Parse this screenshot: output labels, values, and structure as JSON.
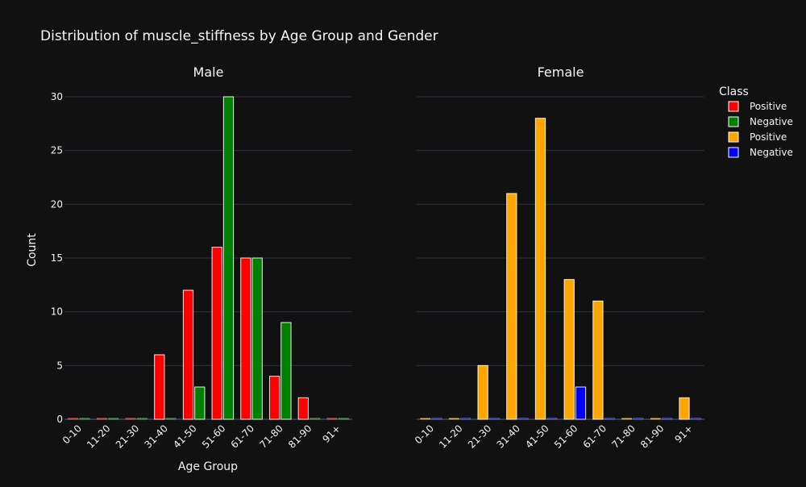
{
  "title": "Distribution of muscle_stiffness by Age Group and Gender",
  "legend": {
    "title": "Class",
    "position": "right",
    "items": [
      {
        "label": "Positive",
        "color": "#ff0000"
      },
      {
        "label": "Negative",
        "color": "#008000"
      },
      {
        "label": "Positive",
        "color": "#ffa500"
      },
      {
        "label": "Negative",
        "color": "#0000ff"
      }
    ]
  },
  "axes": {
    "xlabel": "Age Group",
    "ylabel": "Count",
    "ylim": [
      0,
      32
    ],
    "yticks": [
      0,
      5,
      10,
      15,
      20,
      25,
      30
    ],
    "grid": true
  },
  "chart_data": [
    {
      "type": "bar",
      "title": "Male",
      "categories": [
        "0-10",
        "11-20",
        "21-30",
        "31-40",
        "41-50",
        "51-60",
        "61-70",
        "71-80",
        "81-90",
        "91+"
      ],
      "series": [
        {
          "name": "Positive",
          "color": "#ff0000",
          "values": [
            0,
            0,
            0,
            6,
            12,
            16,
            15,
            4,
            2,
            0
          ]
        },
        {
          "name": "Negative",
          "color": "#008000",
          "values": [
            0,
            0,
            0,
            0,
            3,
            30,
            15,
            9,
            0,
            0
          ]
        }
      ]
    },
    {
      "type": "bar",
      "title": "Female",
      "categories": [
        "0-10",
        "11-20",
        "21-30",
        "31-40",
        "41-50",
        "51-60",
        "61-70",
        "71-80",
        "81-90",
        "91+"
      ],
      "series": [
        {
          "name": "Positive",
          "color": "#ffa500",
          "values": [
            0,
            0,
            5,
            21,
            28,
            13,
            11,
            0,
            0,
            2
          ]
        },
        {
          "name": "Negative",
          "color": "#0000ff",
          "values": [
            0,
            0,
            0,
            0,
            0,
            3,
            0,
            0,
            0,
            0
          ]
        }
      ]
    }
  ]
}
